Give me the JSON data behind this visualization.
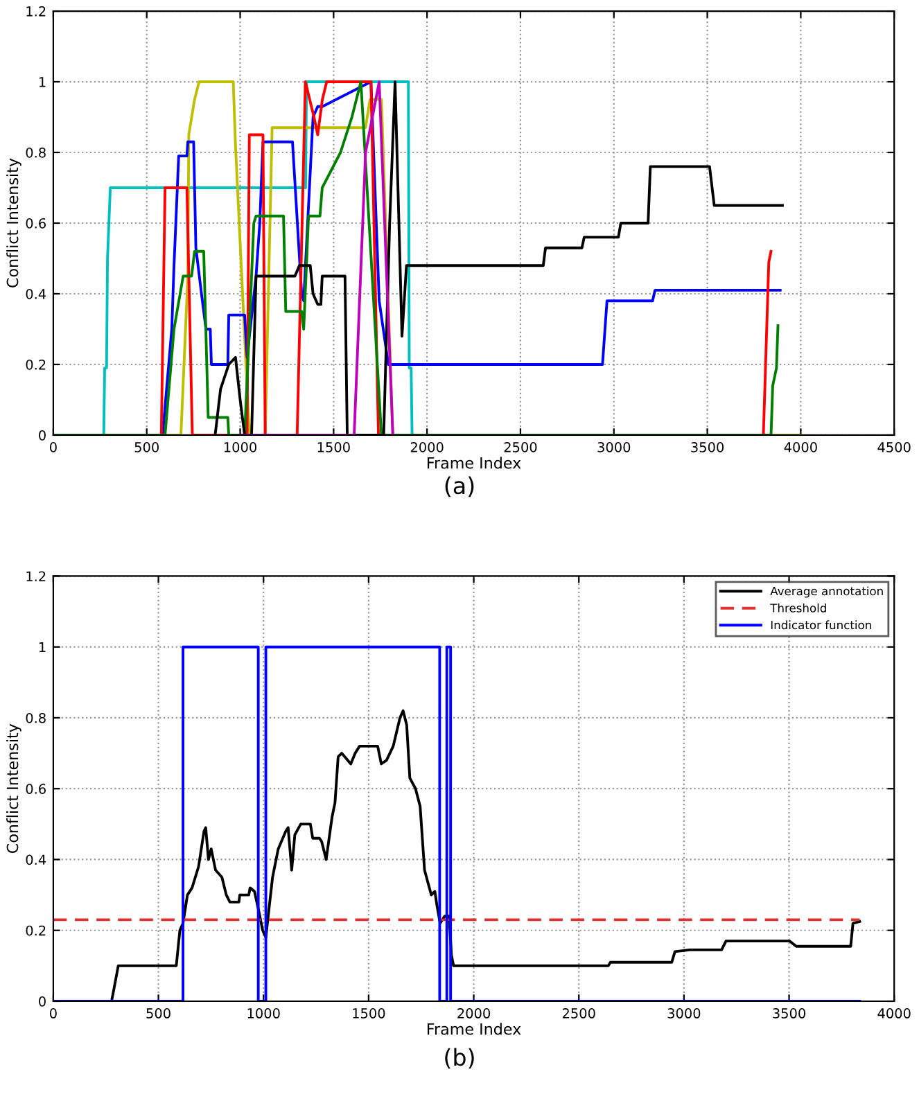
{
  "chart_data": [
    {
      "type": "line",
      "xlabel": "Frame Index",
      "ylabel": "Conflict Intensity",
      "annotations": [
        "(a)"
      ],
      "xlim": [
        0,
        4500
      ],
      "ylim": [
        0,
        1.2
      ],
      "xticks": [
        0,
        500,
        1000,
        1500,
        2000,
        2500,
        3000,
        3500,
        4000,
        4500
      ],
      "yticks": [
        0,
        0.2,
        0.4,
        0.6,
        0.8,
        1,
        1.2
      ],
      "grid": true,
      "legend": false,
      "series": [
        {
          "color": "#00bfbf",
          "x": [
            0,
            270,
            275,
            285,
            290,
            305,
            1350,
            1355,
            1900,
            1905,
            1915,
            1920,
            3900
          ],
          "values": [
            0,
            0,
            0.19,
            0.19,
            0.5,
            0.7,
            0.7,
            1,
            1,
            0.19,
            0.19,
            0,
            0
          ]
        },
        {
          "color": "#bfbf00",
          "x": [
            0,
            683,
            720,
            725,
            756,
            780,
            963,
            975,
            1049,
            1134,
            1171,
            1671,
            1695,
            1756,
            1817,
            4000
          ],
          "values": [
            0,
            0,
            0.45,
            0.85,
            0.95,
            1,
            1,
            0.82,
            0,
            0,
            0.87,
            0.87,
            0.95,
            0.95,
            0,
            0
          ]
        },
        {
          "color": "#0000ff",
          "x": [
            0,
            585,
            634,
            646,
            671,
            715,
            720,
            751,
            763,
            793,
            817,
            840,
            846,
            934,
            939,
            1024,
            1037,
            1085,
            1105,
            1122,
            1280,
            1329,
            1340,
            1390,
            1415,
            1440,
            1700,
            1744,
            1793,
            2939,
            2963,
            3207,
            3220,
            3890
          ],
          "values": [
            0,
            0,
            0.3,
            0.48,
            0.79,
            0.79,
            0.83,
            0.83,
            0.53,
            0.4,
            0.3,
            0.3,
            0.2,
            0.2,
            0.34,
            0.34,
            0.22,
            0.45,
            0.6,
            0.83,
            0.83,
            0.4,
            0.38,
            0.9,
            0.93,
            0.93,
            1,
            0.38,
            0.2,
            0.2,
            0.38,
            0.38,
            0.41,
            0.41
          ]
        },
        {
          "color": "#ff0000",
          "x": [
            0,
            578,
            598,
            715,
            744,
            1037,
            1049,
            1122,
            1134,
            1305,
            1349,
            1395,
            1415,
            1440,
            1463,
            1700,
            1740,
            3800,
            3829,
            3841
          ],
          "values": [
            0,
            0,
            0.7,
            0.7,
            0,
            0,
            0.85,
            0.85,
            0,
            0,
            1,
            0.9,
            0.85,
            0.95,
            1,
            1,
            0,
            0,
            0.49,
            0.52
          ]
        },
        {
          "color": "#008000",
          "x": [
            0,
            598,
            646,
            695,
            740,
            756,
            805,
            829,
            934,
            939,
            1024,
            1049,
            1073,
            1085,
            1232,
            1244,
            1329,
            1340,
            1366,
            1427,
            1439,
            1537,
            1598,
            1646,
            1756,
            3841,
            3850,
            3870,
            3878
          ],
          "values": [
            0,
            0,
            0.3,
            0.45,
            0.45,
            0.52,
            0.52,
            0.05,
            0.05,
            0,
            0,
            0.3,
            0.6,
            0.62,
            0.62,
            0.35,
            0.35,
            0.3,
            0.62,
            0.62,
            0.7,
            0.8,
            0.9,
            1,
            0,
            0,
            0.14,
            0.19,
            0.31
          ]
        },
        {
          "color": "#000000",
          "x": [
            866,
            895,
            939,
            975,
            1000,
            1024,
            1061,
            1085,
            1293,
            1317,
            1375,
            1390,
            1415,
            1432,
            1439,
            1561,
            1573,
            1768,
            1800,
            1829,
            1866,
            1890,
            2622,
            2634,
            2829,
            2841,
            3024,
            3037,
            3183,
            3195,
            3512,
            3537,
            3902
          ],
          "values": [
            0,
            0.13,
            0.2,
            0.22,
            0.1,
            0,
            0,
            0.45,
            0.45,
            0.48,
            0.48,
            0.4,
            0.37,
            0.37,
            0.45,
            0.45,
            0,
            0,
            0.6,
            1,
            0.28,
            0.48,
            0.48,
            0.53,
            0.53,
            0.56,
            0.56,
            0.6,
            0.6,
            0.76,
            0.76,
            0.65,
            0.65
          ]
        },
        {
          "color": "#bf00bf",
          "x": [
            1000,
            1610,
            1671,
            1744,
            1817
          ],
          "values": [
            0,
            0,
            0.8,
            1,
            0
          ]
        }
      ]
    },
    {
      "type": "line",
      "xlabel": "Frame Index",
      "ylabel": "Conflict Intensity",
      "annotations": [
        "(b)"
      ],
      "xlim": [
        0,
        4000
      ],
      "ylim": [
        0,
        1.2
      ],
      "xticks": [
        0,
        500,
        1000,
        1500,
        2000,
        2500,
        3000,
        3500,
        4000
      ],
      "yticks": [
        0,
        0.2,
        0.4,
        0.6,
        0.8,
        1,
        1.2
      ],
      "grid": true,
      "legend": "top right",
      "series": [
        {
          "name": "Average annotation",
          "color": "#000000",
          "line_style": "solid",
          "x": [
            0,
            277,
            287,
            309,
            585,
            602,
            617,
            638,
            660,
            691,
            717,
            725,
            738,
            751,
            772,
            802,
            823,
            840,
            883,
            887,
            930,
            936,
            957,
            979,
            996,
            1011,
            1026,
            1043,
            1070,
            1106,
            1117,
            1134,
            1149,
            1177,
            1223,
            1234,
            1266,
            1277,
            1298,
            1326,
            1340,
            1355,
            1372,
            1415,
            1436,
            1457,
            1543,
            1560,
            1585,
            1617,
            1649,
            1664,
            1681,
            1696,
            1723,
            1745,
            1766,
            1798,
            1815,
            1825,
            1840,
            1862,
            1883,
            1894,
            1904,
            2640,
            2650,
            2942,
            2957,
            3028,
            3179,
            3200,
            3502,
            3534,
            3793,
            3804,
            3836
          ],
          "values": [
            0,
            0,
            0.03,
            0.1,
            0.1,
            0.2,
            0.22,
            0.3,
            0.32,
            0.38,
            0.48,
            0.49,
            0.4,
            0.43,
            0.37,
            0.35,
            0.3,
            0.28,
            0.28,
            0.3,
            0.3,
            0.32,
            0.31,
            0.25,
            0.2,
            0.18,
            0.26,
            0.35,
            0.43,
            0.48,
            0.49,
            0.37,
            0.47,
            0.5,
            0.5,
            0.46,
            0.46,
            0.45,
            0.4,
            0.52,
            0.56,
            0.69,
            0.7,
            0.67,
            0.7,
            0.72,
            0.72,
            0.67,
            0.68,
            0.72,
            0.8,
            0.82,
            0.78,
            0.63,
            0.6,
            0.55,
            0.37,
            0.3,
            0.31,
            0.27,
            0.22,
            0.24,
            0.24,
            0.13,
            0.1,
            0.1,
            0.11,
            0.11,
            0.14,
            0.145,
            0.145,
            0.17,
            0.17,
            0.155,
            0.155,
            0.22,
            0.225
          ]
        },
        {
          "name": "Threshold",
          "color": "#e03030",
          "line_style": "dashed",
          "x": [
            0,
            3836
          ],
          "values": [
            0.23,
            0.23
          ]
        },
        {
          "name": "Indicator function",
          "color": "#0000ff",
          "line_style": "solid",
          "x": [
            0,
            617,
            617,
            975,
            975,
            1011,
            1011,
            1838,
            1838,
            1872,
            1872,
            1890,
            1890,
            3836
          ],
          "values": [
            0,
            0,
            1,
            1,
            0,
            0,
            1,
            1,
            0,
            0,
            1,
            1,
            0,
            0
          ]
        }
      ]
    }
  ]
}
